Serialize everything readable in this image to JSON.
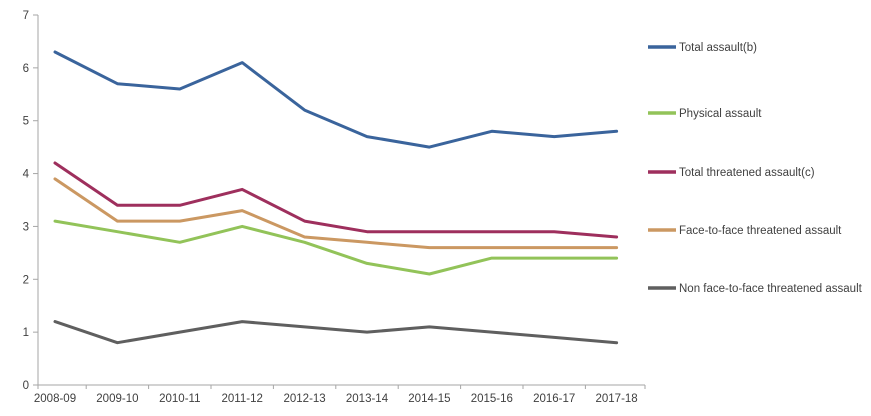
{
  "chart_data": {
    "type": "line",
    "title": "",
    "xlabel": "",
    "ylabel": "",
    "categories": [
      "2008-09",
      "2009-10",
      "2010-11",
      "2011-12",
      "2012-13",
      "2013-14",
      "2014-15",
      "2015-16",
      "2016-17",
      "2017-18"
    ],
    "series": [
      {
        "name": "Total assault(b)",
        "color": "#3a649c",
        "values": [
          6.3,
          5.7,
          5.6,
          6.1,
          5.2,
          4.7,
          4.5,
          4.8,
          4.7,
          4.8
        ]
      },
      {
        "name": "Physical assault",
        "color": "#92c359",
        "values": [
          3.1,
          2.9,
          2.7,
          3.0,
          2.7,
          2.3,
          2.1,
          2.4,
          2.4,
          2.4
        ]
      },
      {
        "name": "Total threatened assault(c)",
        "color": "#9e2f5d",
        "values": [
          4.2,
          3.4,
          3.4,
          3.7,
          3.1,
          2.9,
          2.9,
          2.9,
          2.9,
          2.8
        ]
      },
      {
        "name": "Face-to-face threatened assault",
        "color": "#cb9862",
        "values": [
          3.9,
          3.1,
          3.1,
          3.3,
          2.8,
          2.7,
          2.6,
          2.6,
          2.6,
          2.6
        ]
      },
      {
        "name": "Non face-to-face threatened assault",
        "color": "#5f5f5f",
        "values": [
          1.2,
          0.8,
          1.0,
          1.2,
          1.1,
          1.0,
          1.1,
          1.0,
          0.9,
          0.8
        ]
      }
    ],
    "ylim": [
      0,
      7
    ],
    "y_ticks": [
      0,
      1,
      2,
      3,
      4,
      5,
      6,
      7
    ],
    "grid": false,
    "legend_position": "right",
    "axis_color": "#a6a6a6",
    "text_color": "#404040"
  }
}
